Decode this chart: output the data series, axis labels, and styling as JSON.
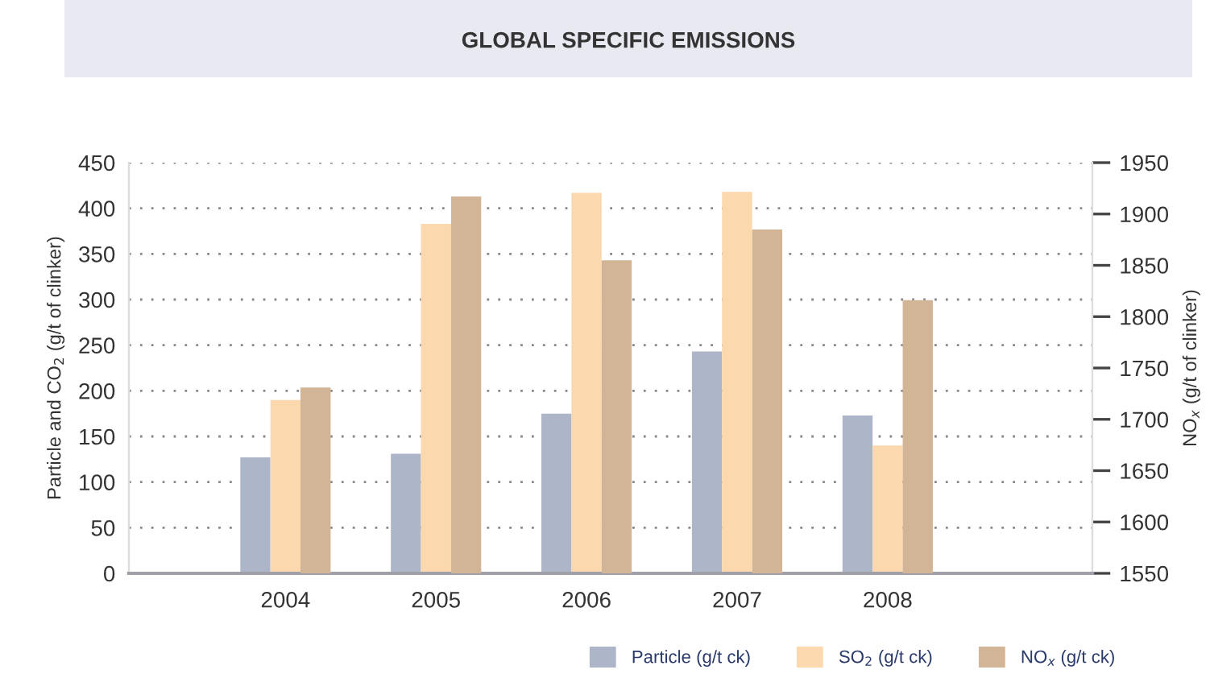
{
  "chart_data": {
    "type": "bar",
    "title": "GLOBAL SPECIFIC EMISSIONS",
    "ylabel": "Particle and CO$_{2}$ (g/t of clinker)",
    "y2label": "NO$_{x}$ (g/t of clinker)",
    "categories": [
      "2004",
      "2005",
      "2006",
      "2007",
      "2008"
    ],
    "series": [
      {
        "name": "Particle (g/t ck)",
        "color": "#adb5c9",
        "values": [
          127,
          131,
          175,
          243,
          173
        ]
      },
      {
        "name": "SO$_{2}$ (g/t ck)",
        "color": "#fbd8ad",
        "values": [
          190,
          383,
          417,
          418,
          140
        ]
      },
      {
        "name": "NO$_{x}$ (g/t ck)",
        "color": "#d2b496",
        "axis": "y2",
        "values": [
          1731,
          1917,
          1855,
          1885,
          1816
        ]
      }
    ],
    "ylim": [
      0,
      450
    ],
    "yticks": [
      0,
      50,
      100,
      150,
      200,
      250,
      300,
      350,
      400,
      450
    ],
    "y2lim": [
      1550,
      1950
    ],
    "y2ticks": [
      1550,
      1600,
      1650,
      1700,
      1750,
      1800,
      1850,
      1900,
      1950
    ],
    "grid": "y",
    "legend": "bottom right"
  }
}
